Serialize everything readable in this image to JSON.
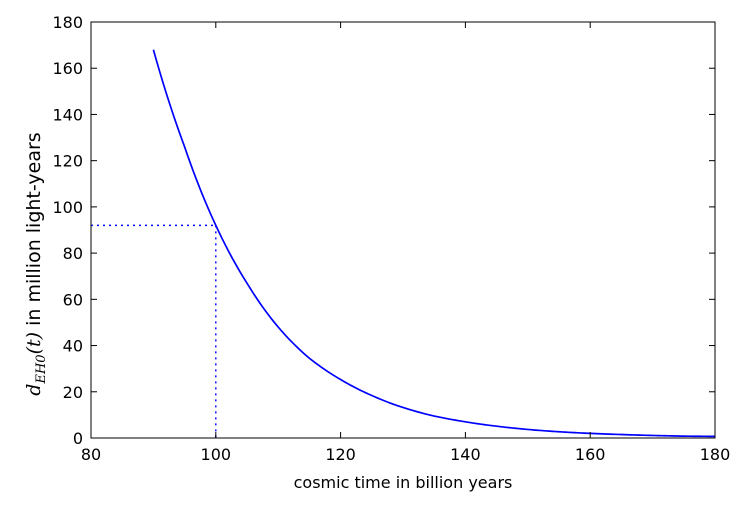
{
  "chart_data": {
    "type": "line",
    "xlabel": "cosmic time in billion years",
    "ylabel_parts": {
      "symbol": "d",
      "subscript": "EH0",
      "argument": "(t)",
      "rest": " in million light-years"
    },
    "xlim": [
      80,
      180
    ],
    "ylim": [
      0,
      180
    ],
    "xticks": [
      "80",
      "100",
      "120",
      "140",
      "160",
      "180"
    ],
    "yticks": [
      "0",
      "20",
      "40",
      "60",
      "80",
      "100",
      "120",
      "140",
      "160",
      "180"
    ],
    "grid": false,
    "line_color": "#0000ff",
    "series": [
      {
        "x": [
          90,
          95,
          100,
          105,
          110,
          115,
          120,
          125,
          130,
          135,
          140,
          145,
          150,
          155,
          160,
          165,
          170,
          175,
          180
        ],
        "values": [
          168,
          126,
          92,
          67,
          48,
          34.5,
          25.3,
          18.4,
          13.2,
          9.5,
          7.0,
          5.1,
          3.7,
          2.7,
          2.0,
          1.5,
          1.1,
          0.8,
          0.7
        ]
      }
    ],
    "reference_point": {
      "x": 100,
      "y": 92
    }
  }
}
